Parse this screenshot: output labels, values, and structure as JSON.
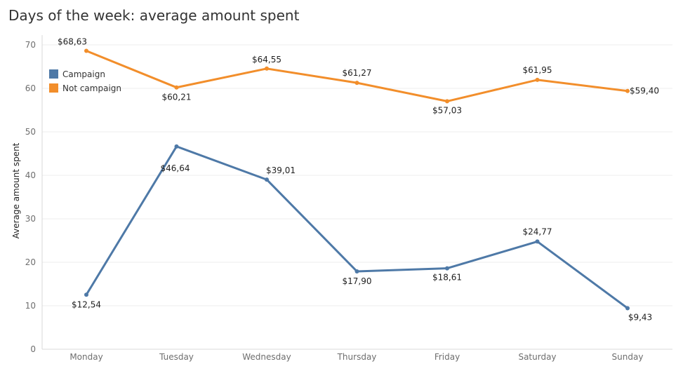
{
  "chart_data": {
    "type": "line",
    "title": "Days of the week: average amount spent",
    "xlabel": "",
    "ylabel": "Average amount spent",
    "ylim": [
      0,
      73
    ],
    "yticks": [
      0,
      10,
      20,
      30,
      40,
      50,
      60,
      70
    ],
    "grid": true,
    "legend_position": "top-left",
    "categories": [
      "Monday",
      "Tuesday",
      "Wednesday",
      "Thursday",
      "Friday",
      "Saturday",
      "Sunday"
    ],
    "series": [
      {
        "name": "Campaign",
        "color": "#4e79a7",
        "values": [
          12.54,
          46.64,
          39.01,
          17.9,
          18.61,
          24.77,
          9.43
        ],
        "labels": [
          "$12,54",
          "$46,64",
          "$39,01",
          "$17,90",
          "$18,61",
          "$24,77",
          "$9,43"
        ]
      },
      {
        "name": "Not campaign",
        "color": "#f28e2b",
        "values": [
          68.63,
          60.21,
          64.55,
          61.27,
          57.03,
          61.95,
          59.4
        ],
        "labels": [
          "$68,63",
          "$60,21",
          "$64,55",
          "$61,27",
          "$57,03",
          "$61,95",
          "$59,40"
        ]
      }
    ]
  }
}
